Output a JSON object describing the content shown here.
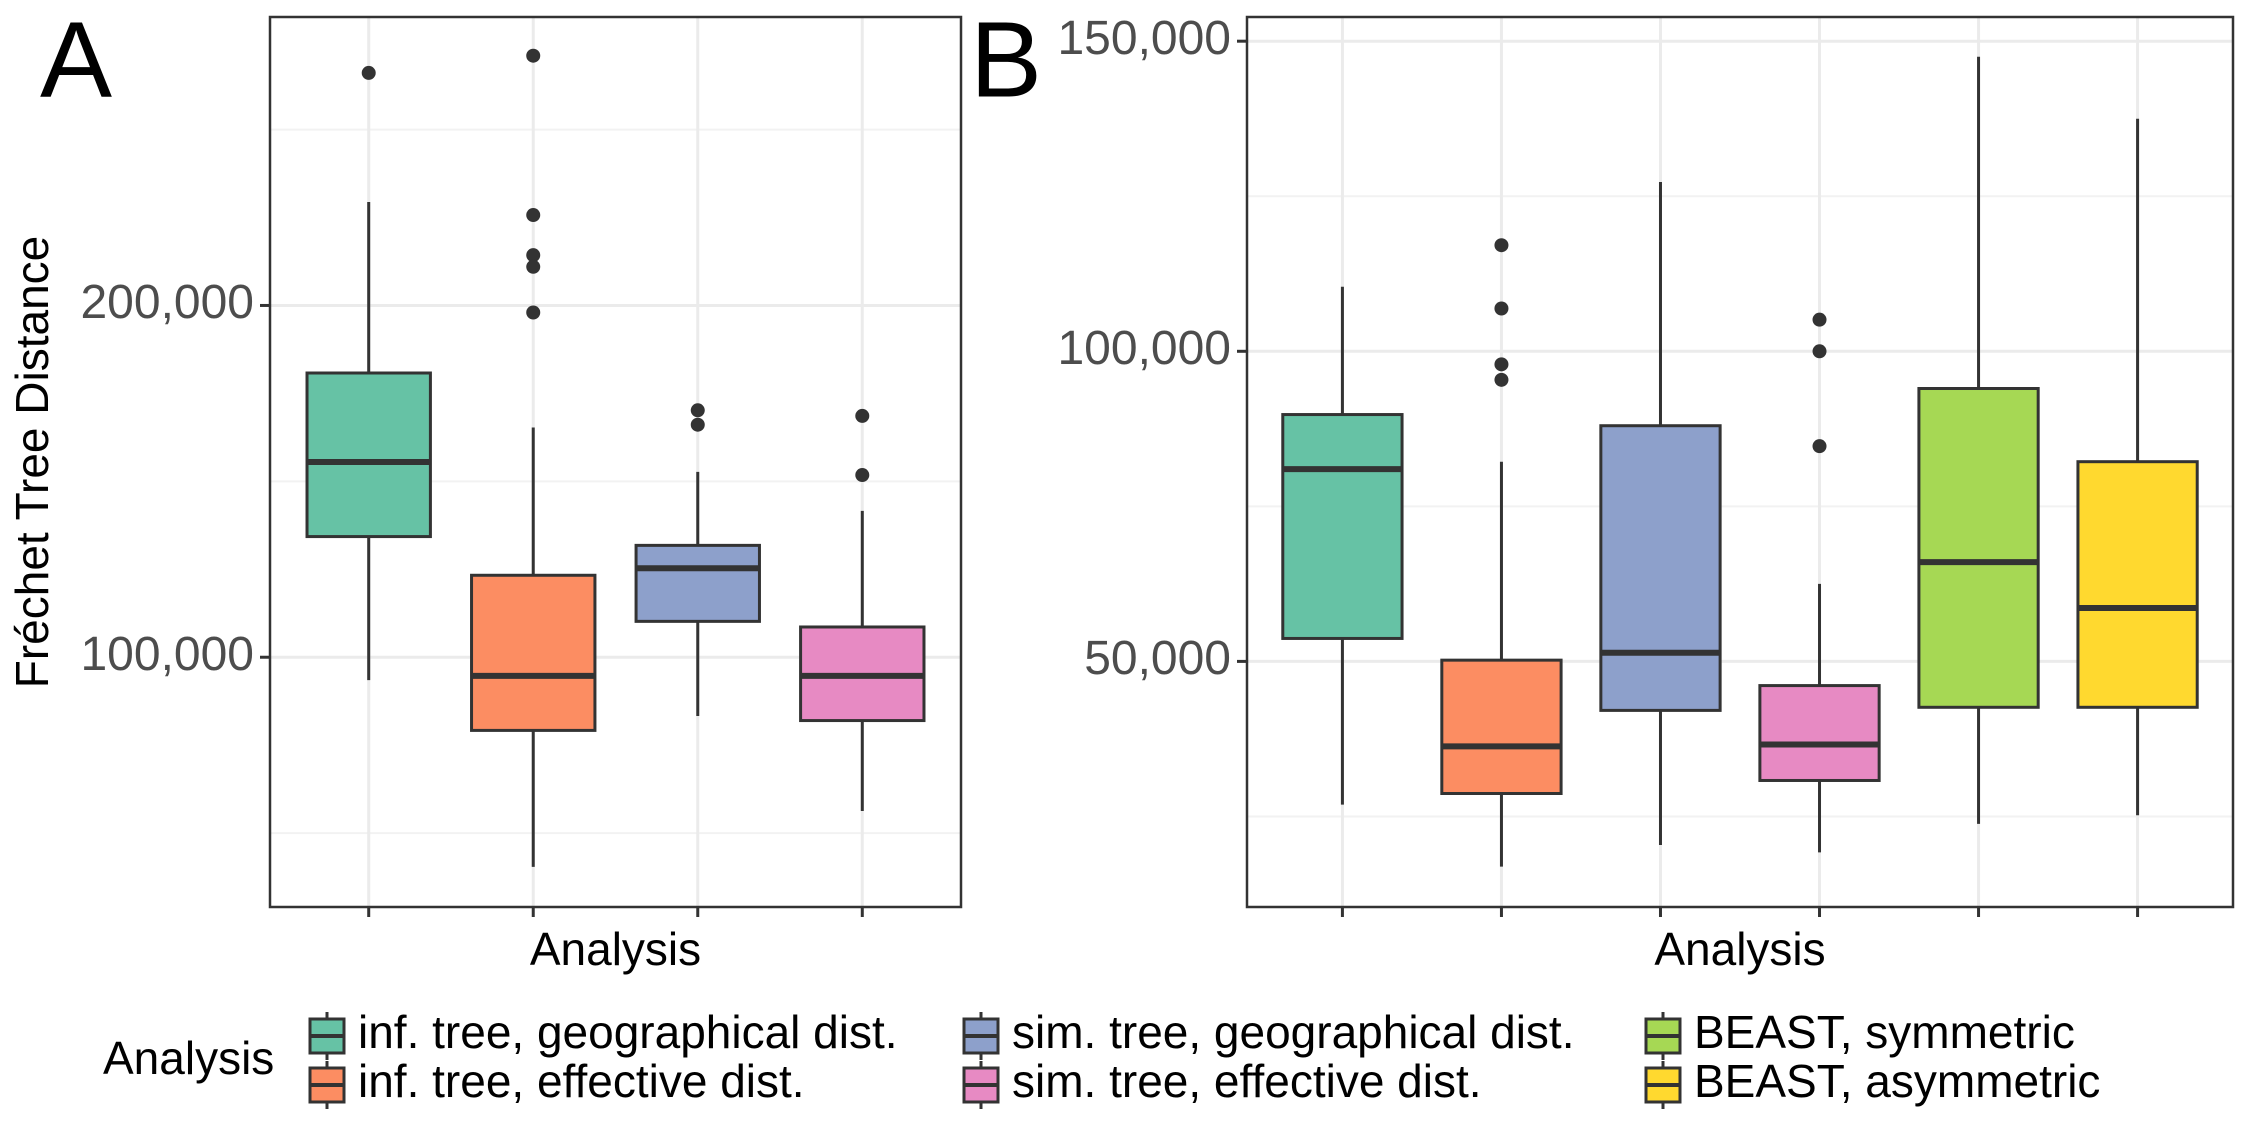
{
  "chart_data": [
    {
      "type": "box",
      "panel_label": "A",
      "ylabel": "Fréchet Tree Distance",
      "xlabel": "Analysis",
      "ylim": [
        29000,
        282000
      ],
      "yticks": [
        {
          "value": 100000,
          "label": "100,000"
        },
        {
          "value": 200000,
          "label": "200,000"
        }
      ],
      "minor_yticks": [
        50000,
        150000,
        250000
      ],
      "grid": true,
      "series": [
        {
          "name": "inf. tree, geographical dist.",
          "color": "#66c2a5",
          "whislo": 93500,
          "q1": 134300,
          "med": 155500,
          "q3": 180800,
          "whishi": 229400,
          "outliers": [
            266100
          ]
        },
        {
          "name": "inf. tree, effective dist.",
          "color": "#fc8d62",
          "whislo": 40400,
          "q1": 79200,
          "med": 94700,
          "q3": 123300,
          "whishi": 165300,
          "outliers": [
            271000,
            225700,
            214300,
            211000,
            198000
          ]
        },
        {
          "name": "sim. tree, geographical dist.",
          "color": "#8da0cb",
          "whislo": 83300,
          "q1": 110200,
          "med": 125300,
          "q3": 131800,
          "whishi": 152700,
          "outliers": [
            170200,
            166100
          ]
        },
        {
          "name": "sim. tree, effective dist.",
          "color": "#e78ac3",
          "whislo": 56300,
          "q1": 82000,
          "med": 94700,
          "q3": 108600,
          "whishi": 141600,
          "outliers": [
            168600,
            151800
          ]
        }
      ]
    },
    {
      "type": "box",
      "panel_label": "B",
      "xlabel": "Analysis",
      "legend_title": "Analysis",
      "ylim": [
        10400,
        153900
      ],
      "yticks": [
        {
          "value": 50000,
          "label": "50,000"
        },
        {
          "value": 100000,
          "label": "100,000"
        },
        {
          "value": 150000,
          "label": "150,000"
        }
      ],
      "minor_yticks": [
        25000,
        75000,
        125000
      ],
      "grid": true,
      "series": [
        {
          "name": "inf. tree, geographical dist.",
          "color": "#66c2a5",
          "whislo": 26900,
          "q1": 53700,
          "med": 81000,
          "q3": 89800,
          "whishi": 110400,
          "outliers": []
        },
        {
          "name": "inf. tree, effective dist.",
          "color": "#fc8d62",
          "whislo": 16900,
          "q1": 28700,
          "med": 36300,
          "q3": 50200,
          "whishi": 82200,
          "outliers": [
            117100,
            106900,
            97900,
            95400
          ]
        },
        {
          "name": "sim. tree, geographical dist.",
          "color": "#8da0cb",
          "whislo": 20400,
          "q1": 42100,
          "med": 51400,
          "q3": 88000,
          "whishi": 127300,
          "outliers": []
        },
        {
          "name": "sim. tree, effective dist.",
          "color": "#e78ac3",
          "whislo": 19200,
          "q1": 30800,
          "med": 36600,
          "q3": 46100,
          "whishi": 62500,
          "outliers": [
            105100,
            100000,
            84700
          ]
        },
        {
          "name": "BEAST, symmetric",
          "color": "#a6d854",
          "whislo": 23800,
          "q1": 42600,
          "med": 66000,
          "q3": 94000,
          "whishi": 147500,
          "outliers": []
        },
        {
          "name": "BEAST, asymmetric",
          "color": "#ffd92f",
          "whislo": 25200,
          "q1": 42600,
          "med": 58600,
          "q3": 82200,
          "whishi": 137500,
          "outliers": []
        }
      ]
    }
  ]
}
